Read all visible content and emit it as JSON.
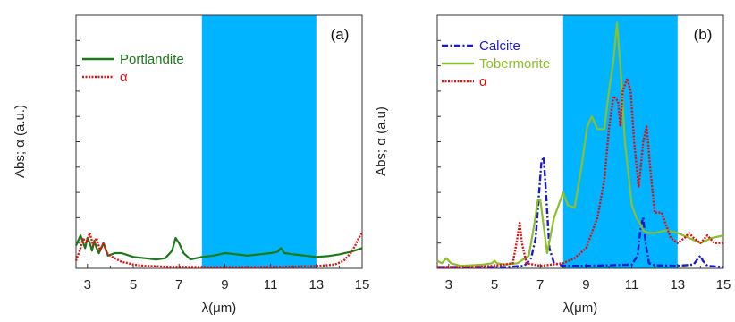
{
  "figure": {
    "panels": [
      {
        "panel_label": "(a)",
        "xlabel": "λ(μm)",
        "ylabel": "Abs; α (a.u.)",
        "legend_position": "upper-left",
        "legend": [
          {
            "name": "Portlandite",
            "color": "#1a7a1a",
            "style": "solid"
          },
          {
            "name": "α",
            "color": "#e01010",
            "style": "dotted"
          }
        ]
      },
      {
        "panel_label": "(b)",
        "xlabel": "λ(μm)",
        "ylabel": "Abs; α (a.u)",
        "legend_position": "upper-left",
        "legend": [
          {
            "name": "Calcite",
            "color": "#1a1acc",
            "style": "dashdot"
          },
          {
            "name": "Tobermorite",
            "color": "#8cbf2a",
            "style": "solid"
          },
          {
            "name": "α",
            "color": "#e01010",
            "style": "dotted"
          }
        ]
      }
    ]
  },
  "chart_data": [
    {
      "type": "line",
      "title": "(a)",
      "xlabel": "λ(μm)",
      "ylabel": "Abs; α (a.u.)",
      "xlim": [
        2.5,
        15
      ],
      "ylim": [
        0,
        1
      ],
      "xticks": [
        3,
        5,
        7,
        9,
        11,
        13,
        15
      ],
      "highlight_band": {
        "x_range": [
          8,
          13
        ],
        "color": "#00b4ff"
      },
      "series": [
        {
          "name": "Portlandite",
          "color": "#1a7a1a",
          "style": "solid",
          "x": [
            2.5,
            2.7,
            2.9,
            3.0,
            3.1,
            3.2,
            3.3,
            3.4,
            3.5,
            3.7,
            3.9,
            4.2,
            4.5,
            5.0,
            5.5,
            6.0,
            6.4,
            6.7,
            6.85,
            7.0,
            7.2,
            7.5,
            8.0,
            8.5,
            9.0,
            9.5,
            10.0,
            10.5,
            11.0,
            11.3,
            11.45,
            11.6,
            12.0,
            12.5,
            13.0,
            13.5,
            14.0,
            14.5,
            15.0
          ],
          "y": [
            0.09,
            0.13,
            0.08,
            0.12,
            0.1,
            0.07,
            0.11,
            0.08,
            0.06,
            0.1,
            0.05,
            0.06,
            0.06,
            0.045,
            0.04,
            0.035,
            0.04,
            0.07,
            0.12,
            0.1,
            0.06,
            0.035,
            0.045,
            0.05,
            0.06,
            0.055,
            0.05,
            0.055,
            0.06,
            0.065,
            0.08,
            0.06,
            0.055,
            0.05,
            0.045,
            0.048,
            0.055,
            0.065,
            0.08
          ]
        },
        {
          "name": "α",
          "color": "#e01010",
          "style": "dotted",
          "x": [
            2.5,
            2.7,
            2.8,
            2.95,
            3.1,
            3.25,
            3.4,
            3.55,
            3.7,
            3.85,
            4.0,
            4.2,
            4.5,
            4.8,
            5.0,
            5.5,
            6.0,
            6.5,
            7.0,
            8.0,
            9.0,
            10.0,
            11.0,
            12.0,
            13.0,
            13.8,
            14.2,
            14.5,
            14.7,
            14.85,
            15.0
          ],
          "y": [
            0.03,
            0.08,
            0.12,
            0.1,
            0.14,
            0.09,
            0.12,
            0.07,
            0.1,
            0.06,
            0.05,
            0.04,
            0.025,
            0.02,
            0.015,
            0.01,
            0.008,
            0.006,
            0.006,
            0.005,
            0.005,
            0.005,
            0.006,
            0.007,
            0.009,
            0.015,
            0.03,
            0.06,
            0.09,
            0.12,
            0.14
          ]
        }
      ]
    },
    {
      "type": "line",
      "title": "(b)",
      "xlabel": "λ(μm)",
      "ylabel": "Abs; α (a.u)",
      "xlim": [
        2.5,
        15
      ],
      "ylim": [
        0,
        1
      ],
      "xticks": [
        3,
        5,
        7,
        9,
        11,
        13,
        15
      ],
      "highlight_band": {
        "x_range": [
          8,
          13
        ],
        "color": "#00b4ff"
      },
      "series": [
        {
          "name": "Calcite",
          "color": "#1a1acc",
          "style": "dashdot",
          "x": [
            2.5,
            5.5,
            6.3,
            6.6,
            6.8,
            6.95,
            7.05,
            7.15,
            7.25,
            7.4,
            7.6,
            8.0,
            9.0,
            10.0,
            11.0,
            11.25,
            11.4,
            11.5,
            11.6,
            11.75,
            12.0,
            13.0,
            13.7,
            13.9,
            14.0,
            14.1,
            14.3,
            15.0
          ],
          "y": [
            0.005,
            0.005,
            0.01,
            0.04,
            0.12,
            0.3,
            0.42,
            0.44,
            0.3,
            0.08,
            0.02,
            0.01,
            0.01,
            0.012,
            0.015,
            0.05,
            0.17,
            0.2,
            0.1,
            0.02,
            0.012,
            0.01,
            0.015,
            0.04,
            0.05,
            0.03,
            0.01,
            0.005
          ]
        },
        {
          "name": "Tobermorite",
          "color": "#8cbf2a",
          "style": "solid",
          "x": [
            2.5,
            2.7,
            2.9,
            3.1,
            3.5,
            4.0,
            4.5,
            4.9,
            5.0,
            5.1,
            5.5,
            6.0,
            6.5,
            6.75,
            6.9,
            7.0,
            7.1,
            7.3,
            7.6,
            8.0,
            8.2,
            8.5,
            8.8,
            9.05,
            9.25,
            9.5,
            9.8,
            10.0,
            10.2,
            10.35,
            10.5,
            10.7,
            11.0,
            11.2,
            11.35,
            11.5,
            11.7,
            12.0,
            12.5,
            13.0,
            13.5,
            14.0,
            14.5,
            15.0
          ],
          "y": [
            0.03,
            0.02,
            0.04,
            0.02,
            0.01,
            0.012,
            0.015,
            0.02,
            0.03,
            0.02,
            0.015,
            0.02,
            0.05,
            0.18,
            0.27,
            0.27,
            0.2,
            0.06,
            0.2,
            0.3,
            0.25,
            0.24,
            0.4,
            0.56,
            0.6,
            0.55,
            0.55,
            0.7,
            0.82,
            0.97,
            0.8,
            0.5,
            0.25,
            0.2,
            0.18,
            0.15,
            0.14,
            0.14,
            0.15,
            0.14,
            0.12,
            0.1,
            0.12,
            0.13
          ]
        },
        {
          "name": "α",
          "color": "#e01010",
          "style": "dotted",
          "x": [
            2.5,
            4.0,
            5.0,
            5.8,
            6.0,
            6.1,
            6.2,
            6.4,
            7.0,
            8.0,
            8.5,
            9.0,
            9.5,
            9.8,
            10.0,
            10.2,
            10.4,
            10.5,
            10.6,
            10.8,
            10.95,
            11.1,
            11.3,
            11.5,
            11.65,
            11.8,
            12.0,
            12.3,
            12.7,
            13.0,
            13.3,
            13.5,
            13.7,
            14.0,
            14.3,
            14.6,
            15.0
          ],
          "y": [
            0.005,
            0.005,
            0.01,
            0.02,
            0.12,
            0.18,
            0.1,
            0.02,
            0.01,
            0.02,
            0.04,
            0.08,
            0.2,
            0.35,
            0.55,
            0.68,
            0.66,
            0.56,
            0.7,
            0.75,
            0.7,
            0.5,
            0.32,
            0.5,
            0.56,
            0.4,
            0.22,
            0.22,
            0.12,
            0.1,
            0.12,
            0.14,
            0.12,
            0.1,
            0.13,
            0.1,
            0.1
          ]
        }
      ]
    }
  ]
}
